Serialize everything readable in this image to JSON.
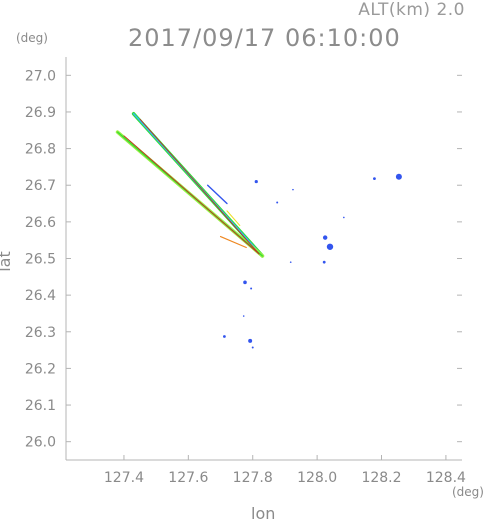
{
  "header": {
    "altitude_label": "ALT(km)  2.0",
    "timestamp": "2017/09/17 06:10:00"
  },
  "chart_data": {
    "type": "scatter",
    "title": "2017/09/17 06:10:00",
    "subtitle": "ALT(km)  2.0",
    "xlabel": "lon",
    "ylabel": "lat",
    "x_unit": "(deg)",
    "y_unit": "(deg)",
    "xlim": [
      127.22,
      128.45
    ],
    "ylim": [
      25.95,
      27.05
    ],
    "x_ticks": [
      127.4,
      127.6,
      127.8,
      128.0,
      128.2,
      128.4
    ],
    "x_tick_labels": [
      "127.4",
      "127.6",
      "127.8",
      "128.0",
      "128.2",
      "128.4"
    ],
    "y_ticks": [
      26.0,
      26.1,
      26.2,
      26.3,
      26.4,
      26.5,
      26.6,
      26.7,
      26.8,
      26.9,
      27.0
    ],
    "y_tick_labels": [
      "26.0",
      "26.1",
      "26.2",
      "26.3",
      "26.4",
      "26.5",
      "26.6",
      "26.7",
      "26.8",
      "26.9",
      "27.0"
    ],
    "grid": false,
    "colors": {
      "axis": "#b4b4b4",
      "green": "#33dd33",
      "light_green": "#99ee44",
      "cyan": "#33bbee",
      "blue": "#3355ee",
      "yellow": "#eedd22",
      "orange": "#ee8822",
      "red": "#cc2222"
    },
    "streaks": [
      {
        "from": [
          127.43,
          26.895
        ],
        "to": [
          127.83,
          26.507
        ],
        "color": "green",
        "width": 3.5
      },
      {
        "from": [
          127.43,
          26.895
        ],
        "to": [
          127.83,
          26.507
        ],
        "color": "cyan",
        "width": 1.5
      },
      {
        "from": [
          127.38,
          26.845
        ],
        "to": [
          127.83,
          26.507
        ],
        "color": "light_green",
        "width": 3.5
      },
      {
        "from": [
          127.38,
          26.845
        ],
        "to": [
          127.83,
          26.507
        ],
        "color": "green",
        "width": 1.2
      },
      {
        "from": [
          127.4,
          26.835
        ],
        "to": [
          127.82,
          26.512
        ],
        "color": "red",
        "width": 0.8
      },
      {
        "from": [
          127.45,
          26.88
        ],
        "to": [
          127.82,
          26.512
        ],
        "color": "red",
        "width": 0.8
      },
      {
        "from": [
          127.7,
          26.56
        ],
        "to": [
          127.78,
          26.53
        ],
        "color": "orange",
        "width": 1.2
      },
      {
        "from": [
          127.66,
          26.7
        ],
        "to": [
          127.72,
          26.65
        ],
        "color": "blue",
        "width": 1.4
      },
      {
        "from": [
          127.72,
          26.63
        ],
        "to": [
          127.76,
          26.59
        ],
        "color": "yellow",
        "width": 1.0
      }
    ],
    "echoes": [
      {
        "lon": 127.811,
        "lat": 26.71,
        "size": 1.6,
        "color": "blue"
      },
      {
        "lon": 127.876,
        "lat": 26.653,
        "size": 1.0,
        "color": "blue"
      },
      {
        "lon": 128.025,
        "lat": 26.557,
        "size": 2.2,
        "color": "blue"
      },
      {
        "lon": 128.04,
        "lat": 26.532,
        "size": 3.2,
        "color": "blue"
      },
      {
        "lon": 128.022,
        "lat": 26.49,
        "size": 1.4,
        "color": "blue"
      },
      {
        "lon": 128.083,
        "lat": 26.612,
        "size": 0.8,
        "color": "blue"
      },
      {
        "lon": 128.178,
        "lat": 26.718,
        "size": 1.4,
        "color": "blue"
      },
      {
        "lon": 128.254,
        "lat": 26.723,
        "size": 3.0,
        "color": "blue"
      },
      {
        "lon": 127.918,
        "lat": 26.49,
        "size": 0.8,
        "color": "blue"
      },
      {
        "lon": 127.776,
        "lat": 26.435,
        "size": 1.8,
        "color": "blue"
      },
      {
        "lon": 127.795,
        "lat": 26.418,
        "size": 1.0,
        "color": "blue"
      },
      {
        "lon": 127.772,
        "lat": 26.343,
        "size": 0.8,
        "color": "blue"
      },
      {
        "lon": 127.712,
        "lat": 26.287,
        "size": 1.4,
        "color": "blue"
      },
      {
        "lon": 127.792,
        "lat": 26.275,
        "size": 2.0,
        "color": "blue"
      },
      {
        "lon": 127.8,
        "lat": 26.257,
        "size": 1.0,
        "color": "blue"
      },
      {
        "lon": 127.925,
        "lat": 26.688,
        "size": 0.8,
        "color": "blue"
      }
    ]
  }
}
